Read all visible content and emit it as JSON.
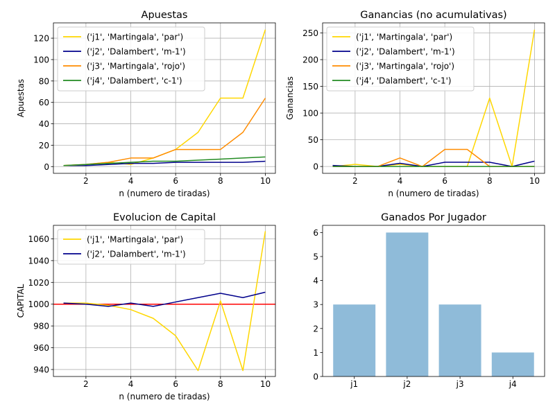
{
  "chart_data": [
    {
      "type": "line",
      "title": "Apuestas",
      "xlabel": "n (numero de tiradas)",
      "ylabel": "Apuestas",
      "xlim": [
        0.55,
        10.45
      ],
      "ylim": [
        -6.3,
        134.3
      ],
      "xticks": [
        2,
        4,
        6,
        8,
        10
      ],
      "yticks": [
        0,
        20,
        40,
        60,
        80,
        100,
        120
      ],
      "grid": true,
      "legend_position": "upper-left",
      "x": [
        1,
        2,
        3,
        4,
        5,
        6,
        7,
        8,
        9,
        10
      ],
      "series": [
        {
          "name": "('j1', 'Martingala', 'par')",
          "color": "#ffd700",
          "values": [
            1,
            2,
            4,
            2,
            8,
            16,
            32,
            64,
            64,
            128
          ]
        },
        {
          "name": "('j2', 'Dalambert', 'm-1')",
          "color": "#00008b",
          "values": [
            1,
            1,
            2,
            3,
            3,
            4,
            4,
            4,
            4,
            5
          ]
        },
        {
          "name": "('j3', 'Martingala', 'rojo')",
          "color": "#ff8c00",
          "values": [
            1,
            2,
            4,
            8,
            8,
            16,
            16,
            16,
            32,
            64
          ]
        },
        {
          "name": "('j4', 'Dalambert', 'c-1')",
          "color": "#228b22",
          "values": [
            1,
            2,
            3,
            4,
            5,
            5,
            6,
            7,
            8,
            9
          ]
        }
      ]
    },
    {
      "type": "line",
      "title": "Ganancias (no acumulativas)",
      "xlabel": "n (numero de tiradas)",
      "ylabel": "Ganancias",
      "xlim": [
        0.55,
        10.45
      ],
      "ylim": [
        -12.8,
        268.8
      ],
      "xticks": [
        2,
        4,
        6,
        8,
        10
      ],
      "yticks": [
        0,
        50,
        100,
        150,
        200,
        250
      ],
      "grid": true,
      "legend_position": "upper-left",
      "x": [
        1,
        2,
        3,
        4,
        5,
        6,
        7,
        8,
        9,
        10
      ],
      "series": [
        {
          "name": "('j1', 'Martingala', 'par')",
          "color": "#ffd700",
          "values": [
            0,
            4,
            0,
            4,
            0,
            0,
            0,
            128,
            0,
            256
          ]
        },
        {
          "name": "('j2', 'Dalambert', 'm-1')",
          "color": "#00008b",
          "values": [
            2,
            0,
            0,
            6,
            0,
            8,
            8,
            8,
            0,
            10
          ]
        },
        {
          "name": "('j3', 'Martingala', 'rojo')",
          "color": "#ff8c00",
          "values": [
            0,
            0,
            0,
            16,
            0,
            32,
            32,
            0,
            0,
            0
          ]
        },
        {
          "name": "('j4', 'Dalambert', 'c-1')",
          "color": "#228b22",
          "values": [
            0,
            0,
            0,
            0,
            0,
            0,
            0,
            0,
            0,
            0
          ]
        }
      ]
    },
    {
      "type": "line",
      "title": "Evolucion de Capital",
      "xlabel": "n (numero de tiradas)",
      "ylabel": "CAPITAL",
      "xlim": [
        0.55,
        10.45
      ],
      "ylim": [
        933.6,
        1072.4
      ],
      "xticks": [
        2,
        4,
        6,
        8,
        10
      ],
      "yticks": [
        940,
        960,
        980,
        1000,
        1020,
        1040,
        1060
      ],
      "grid": true,
      "legend_position": "upper-left",
      "reference_line": {
        "y": 1000,
        "color": "#ff0000"
      },
      "x": [
        1,
        2,
        3,
        4,
        5,
        6,
        7,
        8,
        9,
        10
      ],
      "series": [
        {
          "name": "('j1', 'Martingala', 'par')",
          "color": "#ffd700",
          "values": [
            1001,
            1001,
            999,
            995,
            987,
            971,
            939,
            1003,
            939,
            1067
          ]
        },
        {
          "name": "('j2', 'Dalambert', 'm-1')",
          "color": "#00008b",
          "values": [
            1001,
            1000,
            998,
            1001,
            998,
            1002,
            1006,
            1010,
            1006,
            1011
          ]
        }
      ]
    },
    {
      "type": "bar",
      "title": "Ganados Por Jugador",
      "xlabel": "",
      "ylabel": "",
      "ylim": [
        0,
        6.3
      ],
      "yticks": [
        0,
        1,
        2,
        3,
        4,
        5,
        6
      ],
      "grid": false,
      "bar_color": "#8fbbd9",
      "categories": [
        "j1",
        "j2",
        "j3",
        "j4"
      ],
      "values": [
        3,
        6,
        3,
        1
      ]
    }
  ]
}
